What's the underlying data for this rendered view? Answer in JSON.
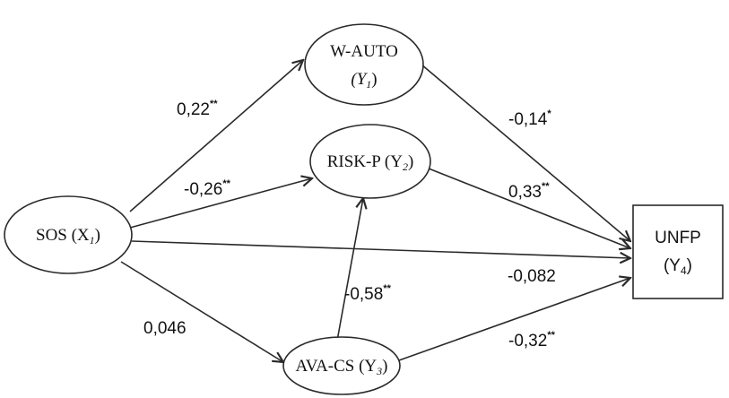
{
  "nodes": {
    "wauto": {
      "line1": "W-AUTO",
      "line2": "(Y",
      "sub": "1",
      "close": ")"
    },
    "riskp": {
      "label": "RISK-P (Y",
      "sub": "2",
      "close": ")"
    },
    "sos": {
      "label": "SOS (X",
      "sub": "1",
      "close": ")"
    },
    "avacs": {
      "label": "AVA-CS (Y",
      "sub": "3",
      "close": ")"
    },
    "unfp": {
      "line1": "UNFP",
      "line2": "(Y",
      "sub": "4",
      "close": ")"
    }
  },
  "edges": {
    "sos_wauto": {
      "value": "0,22",
      "sig": "**"
    },
    "sos_riskp": {
      "value": "-0,26",
      "sig": "**"
    },
    "sos_unfp": {
      "value": "-0,082",
      "sig": ""
    },
    "sos_avacs": {
      "value": "0,046",
      "sig": ""
    },
    "wauto_unfp": {
      "value": "-0,14",
      "sig": "*"
    },
    "riskp_unfp": {
      "value": "0,33",
      "sig": "**"
    },
    "avacs_riskp": {
      "value": "-0,58",
      "sig": "**"
    },
    "avacs_unfp": {
      "value": "-0,32",
      "sig": "**"
    }
  }
}
